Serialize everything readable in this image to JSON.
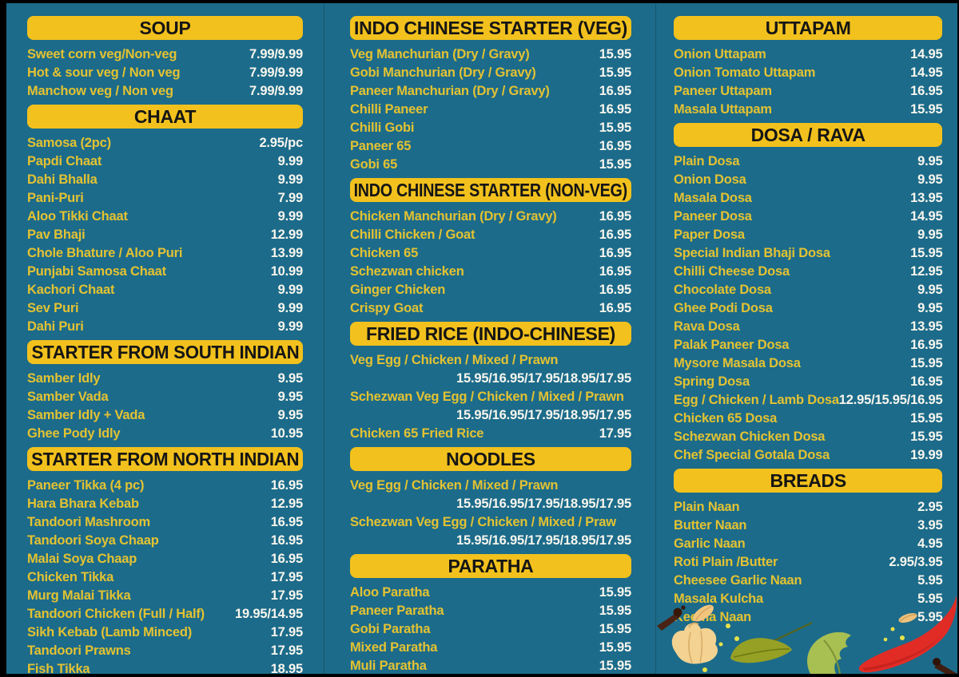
{
  "colors": {
    "background": "#1c6b8a",
    "header_bg": "#f2c11d",
    "header_text": "#151515",
    "item_text": "#e3c232",
    "price_text": "#f8f6ee",
    "divider": "#15576f",
    "chilli_red": "#e12c26",
    "leaf_green": "#a8bf52",
    "garlic_cream": "#f3d292"
  },
  "decorations": [
    "clove-icon",
    "petal-icon",
    "garlic-icon",
    "spice-dots",
    "bay-leaf-icon",
    "coriander-leaf-icon",
    "seed-icon",
    "red-chilli-icon",
    "clove-icon"
  ],
  "columns": [
    {
      "sections": [
        {
          "title": "SOUP",
          "items": [
            {
              "name": "Sweet corn veg/Non-veg",
              "price": "7.99/9.99"
            },
            {
              "name": "Hot & sour veg / Non veg",
              "price": "7.99/9.99"
            },
            {
              "name": "Manchow veg / Non veg",
              "price": "7.99/9.99"
            }
          ]
        },
        {
          "title": "CHAAT",
          "items": [
            {
              "name": "Samosa (2pc)",
              "price": "2.95/pc"
            },
            {
              "name": "Papdi Chaat",
              "price": "9.99"
            },
            {
              "name": "Dahi Bhalla",
              "price": "9.99"
            },
            {
              "name": "Pani-Puri",
              "price": "7.99"
            },
            {
              "name": "Aloo Tikki Chaat",
              "price": "9.99"
            },
            {
              "name": "Pav Bhaji",
              "price": "12.99"
            },
            {
              "name": "Chole Bhature / Aloo Puri",
              "price": "13.99"
            },
            {
              "name": "Punjabi Samosa Chaat",
              "price": "10.99"
            },
            {
              "name": "Kachori Chaat",
              "price": "9.99"
            },
            {
              "name": "Sev Puri",
              "price": "9.99"
            },
            {
              "name": "Dahi Puri",
              "price": "9.99"
            }
          ]
        },
        {
          "title": "STARTER FROM SOUTH INDIAN",
          "items": [
            {
              "name": "Samber Idly",
              "price": "9.95"
            },
            {
              "name": "Samber Vada",
              "price": "9.95"
            },
            {
              "name": "Samber Idly + Vada",
              "price": "9.95"
            },
            {
              "name": "Ghee Pody Idly",
              "price": "10.95"
            }
          ]
        },
        {
          "title": "STARTER FROM NORTH INDIAN",
          "items": [
            {
              "name": "Paneer Tikka (4 pc)",
              "price": "16.95"
            },
            {
              "name": "Hara Bhara Kebab",
              "price": "12.95"
            },
            {
              "name": "Tandoori Mashroom",
              "price": "16.95"
            },
            {
              "name": "Tandoori Soya Chaap",
              "price": "16.95"
            },
            {
              "name": "Malai Soya Chaap",
              "price": "16.95"
            },
            {
              "name": "Chicken Tikka",
              "price": "17.95"
            },
            {
              "name": "Murg Malai Tikka",
              "price": "17.95"
            },
            {
              "name": "Tandoori Chicken (Full / Half)",
              "price": "19.95/14.95"
            },
            {
              "name": "Sikh Kebab (Lamb Minced)",
              "price": "17.95"
            },
            {
              "name": "Tandoori Prawns",
              "price": "17.95"
            },
            {
              "name": "Fish Tikka",
              "price": "18.95"
            }
          ]
        }
      ]
    },
    {
      "sections": [
        {
          "title": "INDO CHINESE STARTER (VEG)",
          "items": [
            {
              "name": "Veg Manchurian (Dry / Gravy)",
              "price": "15.95"
            },
            {
              "name": "Gobi Manchurian (Dry / Gravy)",
              "price": "15.95"
            },
            {
              "name": "Paneer Manchurian (Dry / Gravy)",
              "price": "16.95"
            },
            {
              "name": "Chilli Paneer",
              "price": "16.95"
            },
            {
              "name": "Chilli Gobi",
              "price": "15.95"
            },
            {
              "name": "Paneer 65",
              "price": "16.95"
            },
            {
              "name": "Gobi 65",
              "price": "15.95"
            }
          ]
        },
        {
          "title": "INDO CHINESE STARTER (NON-VEG)",
          "items": [
            {
              "name": "Chicken Manchurian (Dry / Gravy)",
              "price": "16.95"
            },
            {
              "name": "Chilli Chicken / Goat",
              "price": "16.95"
            },
            {
              "name": "Chicken 65",
              "price": "16.95"
            },
            {
              "name": "Schezwan chicken",
              "price": "16.95"
            },
            {
              "name": "Ginger Chicken",
              "price": "16.95"
            },
            {
              "name": "Crispy Goat",
              "price": "16.95"
            }
          ]
        },
        {
          "title": "FRIED RICE (INDO-CHINESE)",
          "items": [
            {
              "name": "Veg Egg / Chicken / Mixed / Prawn",
              "price": "15.95/16.95/17.95/18.95/17.95",
              "wrap": true
            },
            {
              "name": "Schezwan Veg Egg / Chicken / Mixed / Prawn",
              "price": "15.95/16.95/17.95/18.95/17.95",
              "wrap": true
            },
            {
              "name": "Chicken 65 Fried Rice",
              "price": "17.95"
            }
          ]
        },
        {
          "title": "NOODLES",
          "items": [
            {
              "name": "Veg Egg / Chicken / Mixed / Prawn",
              "price": "15.95/16.95/17.95/18.95/17.95",
              "wrap": true
            },
            {
              "name": "Schezwan Veg Egg / Chicken / Mixed / Praw",
              "price": "15.95/16.95/17.95/18.95/17.95",
              "wrap": true
            }
          ]
        },
        {
          "title": "PARATHA",
          "items": [
            {
              "name": "Aloo Paratha",
              "price": "15.95"
            },
            {
              "name": "Paneer Paratha",
              "price": "15.95"
            },
            {
              "name": "Gobi Paratha",
              "price": "15.95"
            },
            {
              "name": "Mixed Paratha",
              "price": "15.95"
            },
            {
              "name": "Muli Paratha",
              "price": "15.95"
            }
          ]
        }
      ]
    },
    {
      "sections": [
        {
          "title": "UTTAPAM",
          "items": [
            {
              "name": "Onion Uttapam",
              "price": "14.95"
            },
            {
              "name": "Onion Tomato Uttapam",
              "price": "14.95"
            },
            {
              "name": "Paneer Uttapam",
              "price": "16.95"
            },
            {
              "name": "Masala Uttapam",
              "price": "15.95"
            }
          ]
        },
        {
          "title": "DOSA / RAVA",
          "items": [
            {
              "name": "Plain Dosa",
              "price": "9.95"
            },
            {
              "name": "Onion Dosa",
              "price": "9.95"
            },
            {
              "name": "Masala Dosa",
              "price": "13.95"
            },
            {
              "name": "Paneer Dosa",
              "price": "14.95"
            },
            {
              "name": "Paper Dosa",
              "price": "9.95"
            },
            {
              "name": "Special Indian Bhaji Dosa",
              "price": "15.95"
            },
            {
              "name": "Chilli Cheese Dosa",
              "price": "12.95"
            },
            {
              "name": "Chocolate Dosa",
              "price": "9.95"
            },
            {
              "name": "Ghee Podi Dosa",
              "price": "9.95"
            },
            {
              "name": "Rava Dosa",
              "price": "13.95"
            },
            {
              "name": "Palak Paneer Dosa",
              "price": "16.95"
            },
            {
              "name": "Mysore Masala Dosa",
              "price": "15.95"
            },
            {
              "name": "Spring Dosa",
              "price": "16.95"
            },
            {
              "name": "Egg / Chicken / Lamb Dosa",
              "price": "12.95/15.95/16.95"
            },
            {
              "name": "Chicken 65 Dosa",
              "price": "15.95"
            },
            {
              "name": "Schezwan Chicken Dosa",
              "price": "15.95"
            },
            {
              "name": "Chef Special Gotala Dosa",
              "price": "19.99"
            }
          ]
        },
        {
          "title": "BREADS",
          "items": [
            {
              "name": "Plain Naan",
              "price": "2.95"
            },
            {
              "name": "Butter Naan",
              "price": "3.95"
            },
            {
              "name": "Garlic Naan",
              "price": "4.95"
            },
            {
              "name": "Roti Plain /Butter",
              "price": "2.95/3.95"
            },
            {
              "name": "Cheesee Garlic Naan",
              "price": "5.95"
            },
            {
              "name": "Masala Kulcha",
              "price": "5.95"
            },
            {
              "name": "Keema Naan",
              "price": "5.95"
            }
          ]
        }
      ]
    }
  ]
}
